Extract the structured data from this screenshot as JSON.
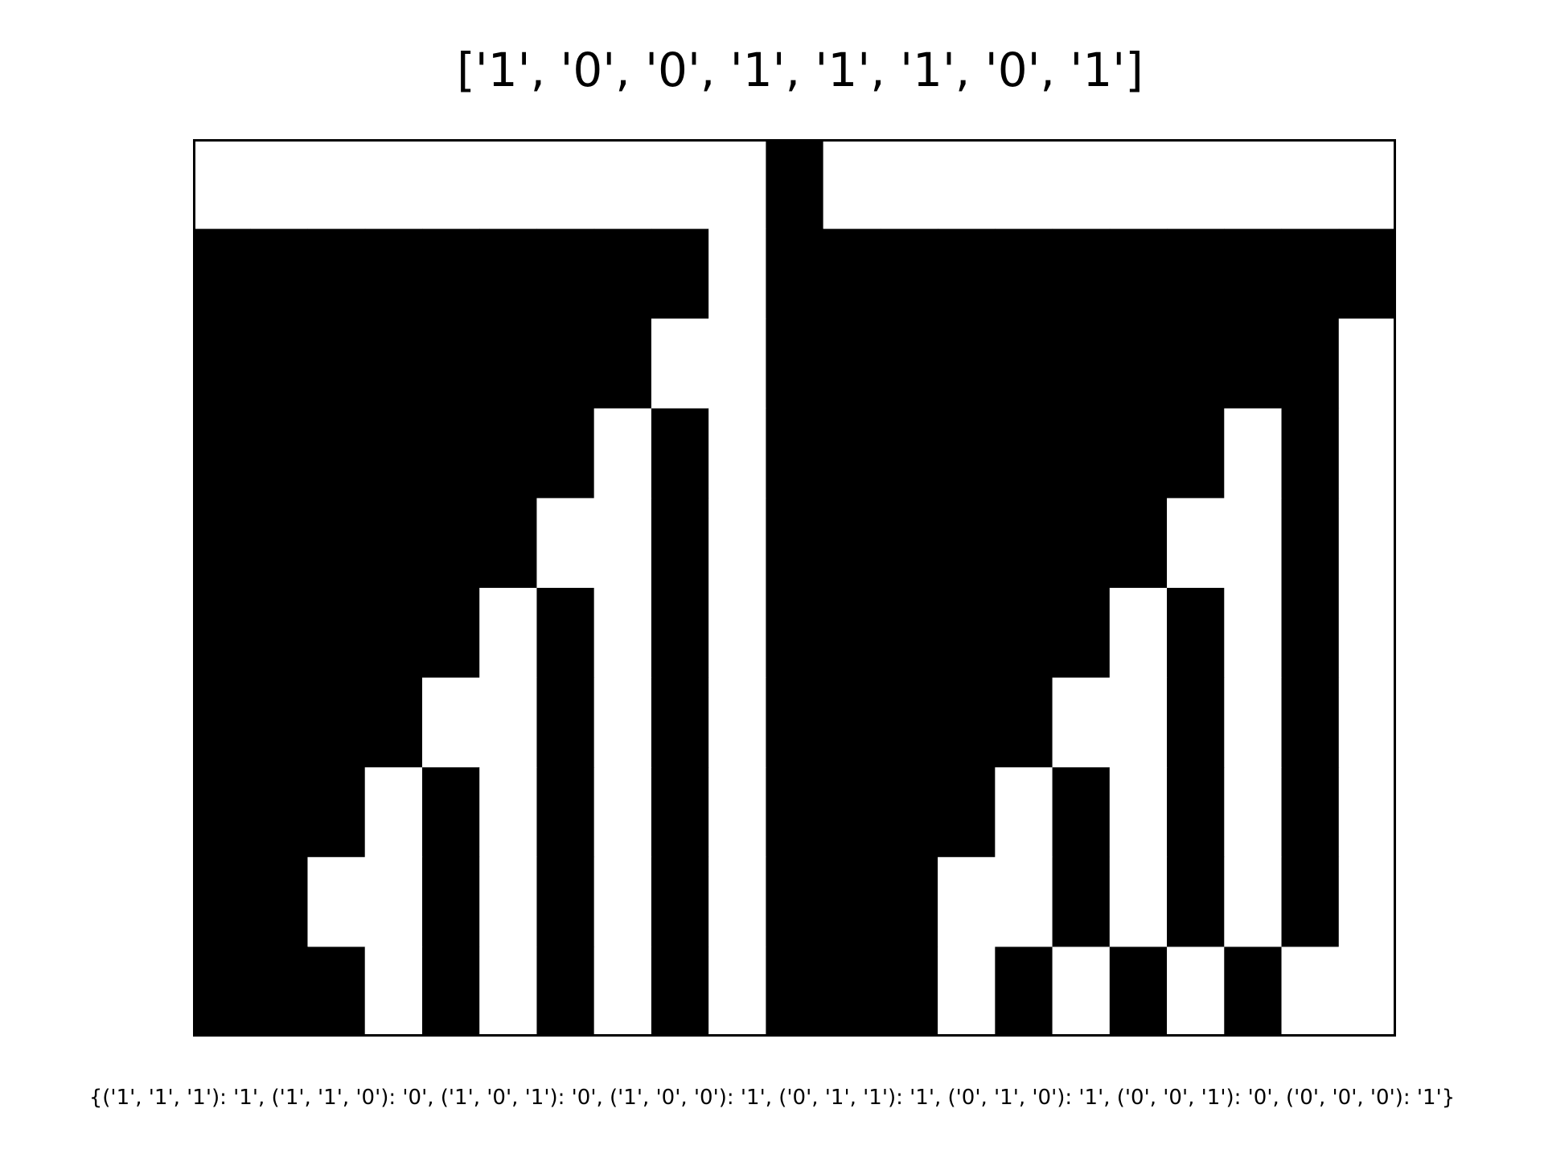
{
  "chart_data": {
    "type": "heatmap",
    "title": "['1', '0', '0', '1', '1', '1', '0', '1']",
    "caption": "{('1', '1', '1'): '1', ('1', '1', '0'): '0', ('1', '0', '1'): '0', ('1', '0', '0'): '1', ('0', '1', '1'): '1', ('0', '1', '0'): '1', ('0', '0', '1'): '0', ('0', '0', '0'): '1'}",
    "rows": 10,
    "cols": 21,
    "value_colors": {
      "0": "#ffffff",
      "1": "#000000"
    },
    "grid": false,
    "cells": [
      "000000000010000000000",
      "111111111011111111111",
      "111111110011111111110",
      "111111101011111111010",
      "111111001011111110010",
      "111110101011111101010",
      "111100101011111001010",
      "111010101011110101010",
      "110010101011100101010",
      "111010101011101010100"
    ]
  }
}
